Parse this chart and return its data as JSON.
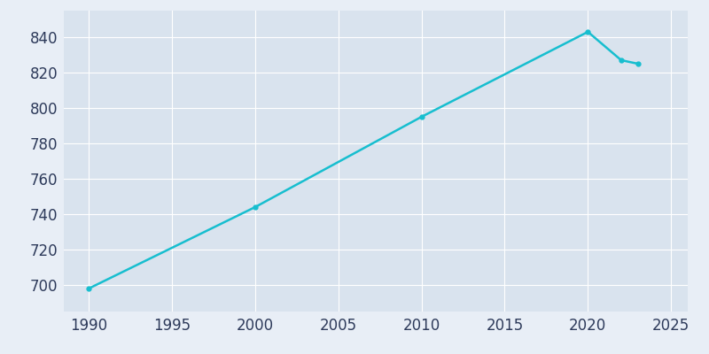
{
  "years": [
    1990,
    2000,
    2010,
    2020,
    2022,
    2023
  ],
  "population": [
    698,
    744,
    795,
    843,
    827,
    825
  ],
  "line_color": "#17BECF",
  "marker": "o",
  "marker_size": 3.5,
  "line_width": 1.8,
  "bg_color": "#E8EEF6",
  "plot_bg_color": "#D9E3EE",
  "grid_color": "#FFFFFF",
  "tick_color": "#2D3A5A",
  "xlabel": "",
  "ylabel": "",
  "xlim": [
    1988.5,
    2026
  ],
  "ylim": [
    685,
    855
  ],
  "xticks": [
    1990,
    1995,
    2000,
    2005,
    2010,
    2015,
    2020,
    2025
  ],
  "yticks": [
    700,
    720,
    740,
    760,
    780,
    800,
    820,
    840
  ],
  "tick_fontsize": 12
}
